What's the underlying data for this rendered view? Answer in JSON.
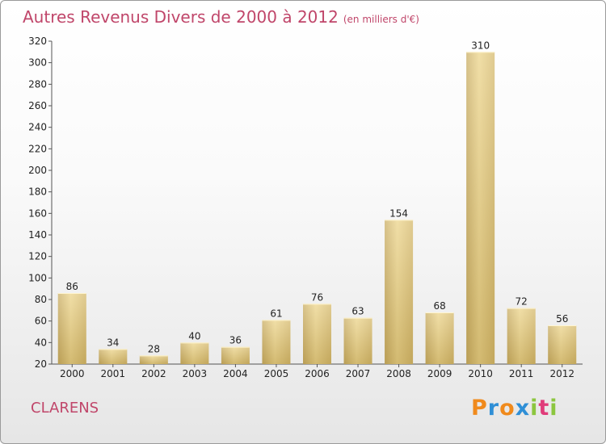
{
  "chart_data": {
    "type": "bar",
    "title": "Autres Revenus Divers de 2000 à 2012",
    "subtitle": "(en milliers d'€)",
    "categories": [
      "2000",
      "2001",
      "2002",
      "2003",
      "2004",
      "2005",
      "2006",
      "2007",
      "2008",
      "2009",
      "2010",
      "2011",
      "2012"
    ],
    "values": [
      86,
      34,
      28,
      40,
      36,
      61,
      76,
      63,
      154,
      68,
      310,
      72,
      56
    ],
    "ylim": [
      20,
      320
    ],
    "yticks": [
      20,
      40,
      60,
      80,
      100,
      120,
      140,
      160,
      180,
      200,
      220,
      240,
      260,
      280,
      300,
      320
    ],
    "xlabel": "",
    "ylabel": "",
    "grid": false,
    "bar_color": "#e8cf7e",
    "title_color": "#c0466a"
  },
  "footer": {
    "town": "CLARENS",
    "logo_letters": [
      "P",
      "r",
      "o",
      "x",
      "i",
      "t",
      "i"
    ],
    "logo_colors": [
      "#f08a1c",
      "#2f8fd6",
      "#f08a1c",
      "#2f8fd6",
      "#8cc63f",
      "#e03c7a",
      "#8cc63f"
    ]
  }
}
